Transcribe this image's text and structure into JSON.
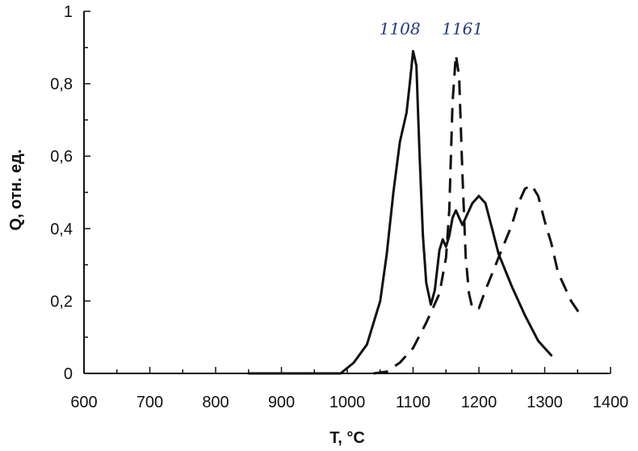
{
  "chart_data": {
    "type": "line",
    "xlabel": "T, °C",
    "ylabel": "Q, отн. ед.",
    "xlim": [
      600,
      1400
    ],
    "ylim": [
      0,
      1
    ],
    "x_ticks": [
      600,
      700,
      800,
      900,
      1000,
      1100,
      1200,
      1300,
      1400
    ],
    "y_ticks": [
      0,
      0.2,
      0.4,
      0.6,
      0.8,
      1
    ],
    "y_tick_labels": [
      "0",
      "0,2",
      "0,4",
      "0,6",
      "0,8",
      "1"
    ],
    "grid": false,
    "series": [
      {
        "style": "solid",
        "points": [
          [
            850,
            0
          ],
          [
            900,
            0
          ],
          [
            950,
            0
          ],
          [
            990,
            0
          ],
          [
            1010,
            0.03
          ],
          [
            1030,
            0.08
          ],
          [
            1050,
            0.2
          ],
          [
            1060,
            0.33
          ],
          [
            1070,
            0.5
          ],
          [
            1080,
            0.64
          ],
          [
            1090,
            0.72
          ],
          [
            1095,
            0.8
          ],
          [
            1100,
            0.89
          ],
          [
            1105,
            0.85
          ],
          [
            1110,
            0.6
          ],
          [
            1115,
            0.38
          ],
          [
            1120,
            0.25
          ],
          [
            1127,
            0.19
          ],
          [
            1133,
            0.23
          ],
          [
            1140,
            0.34
          ],
          [
            1145,
            0.37
          ],
          [
            1150,
            0.35
          ],
          [
            1155,
            0.38
          ],
          [
            1160,
            0.43
          ],
          [
            1165,
            0.45
          ],
          [
            1170,
            0.43
          ],
          [
            1175,
            0.41
          ],
          [
            1180,
            0.43
          ],
          [
            1190,
            0.47
          ],
          [
            1200,
            0.49
          ],
          [
            1210,
            0.47
          ],
          [
            1220,
            0.4
          ],
          [
            1230,
            0.33
          ],
          [
            1250,
            0.24
          ],
          [
            1270,
            0.16
          ],
          [
            1290,
            0.09
          ],
          [
            1310,
            0.05
          ]
        ]
      },
      {
        "style": "dashed",
        "points": [
          [
            1040,
            0
          ],
          [
            1060,
            0.005
          ],
          [
            1080,
            0.03
          ],
          [
            1100,
            0.07
          ],
          [
            1120,
            0.14
          ],
          [
            1140,
            0.22
          ],
          [
            1150,
            0.32
          ],
          [
            1155,
            0.45
          ],
          [
            1160,
            0.75
          ],
          [
            1165,
            0.88
          ],
          [
            1170,
            0.82
          ],
          [
            1175,
            0.55
          ],
          [
            1180,
            0.32
          ],
          [
            1185,
            0.22
          ],
          [
            1190,
            0.18
          ],
          [
            1200,
            0.18
          ],
          [
            1210,
            0.23
          ],
          [
            1230,
            0.32
          ],
          [
            1250,
            0.41
          ],
          [
            1260,
            0.47
          ],
          [
            1270,
            0.51
          ],
          [
            1280,
            0.52
          ],
          [
            1290,
            0.49
          ],
          [
            1300,
            0.42
          ],
          [
            1310,
            0.36
          ],
          [
            1320,
            0.28
          ],
          [
            1340,
            0.2
          ],
          [
            1355,
            0.16
          ]
        ]
      }
    ],
    "annotations": [
      {
        "text": "1108",
        "x": 1080,
        "y": 0.95
      },
      {
        "text": "1161",
        "x": 1175,
        "y": 0.95
      }
    ]
  }
}
